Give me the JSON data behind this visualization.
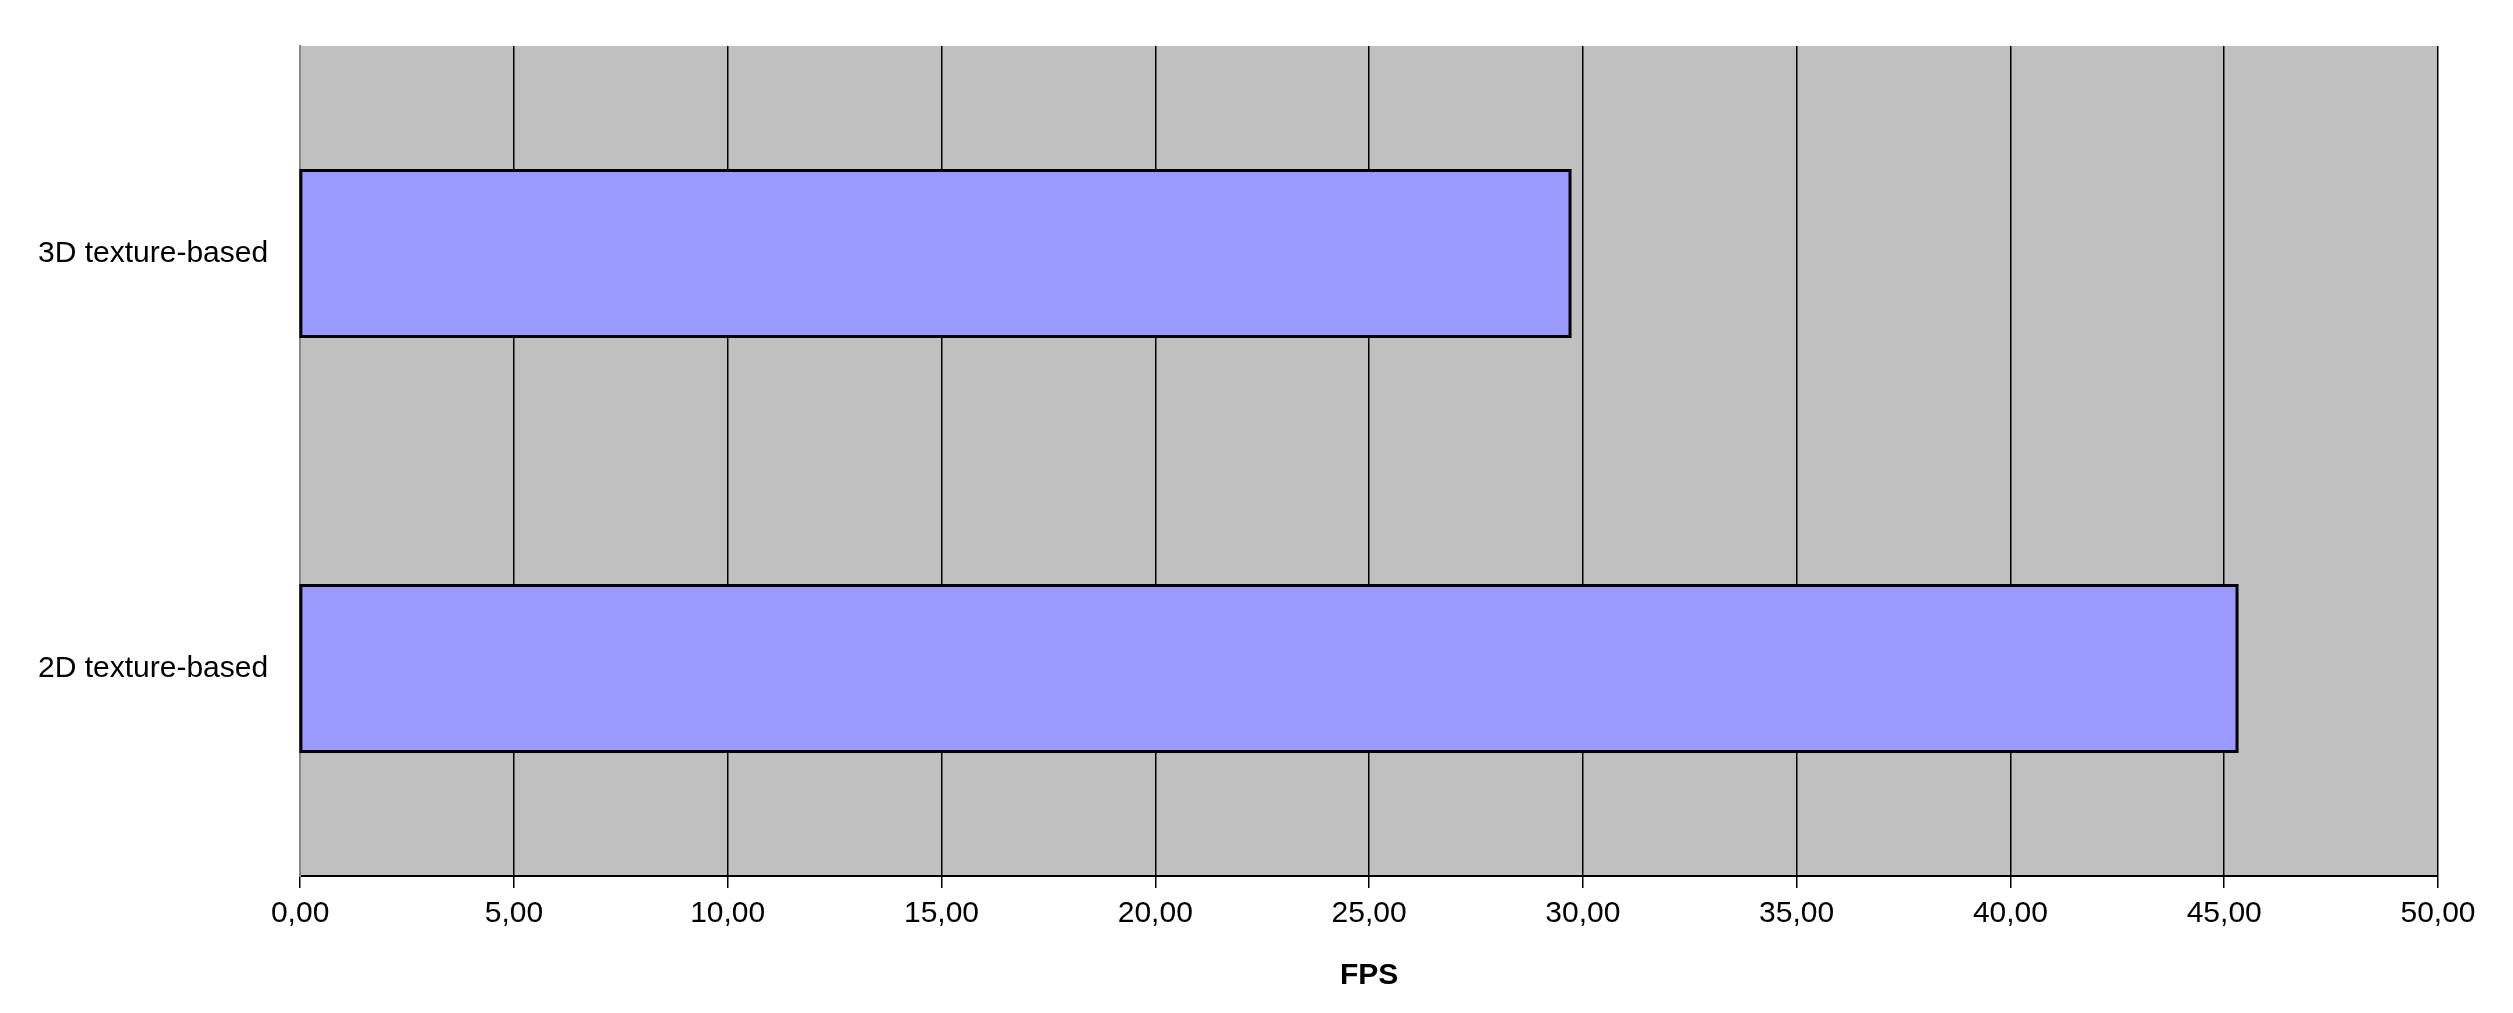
{
  "chart_data": {
    "type": "bar",
    "orientation": "horizontal",
    "xlabel": "FPS",
    "categories": [
      "3D texture-based",
      "2D texture-based"
    ],
    "values": [
      29.7,
      45.3
    ],
    "color": "#9999ff",
    "xlim": [
      0,
      50
    ],
    "xticks": [
      {
        "value": 0,
        "label": "0,00"
      },
      {
        "value": 5,
        "label": "5,00"
      },
      {
        "value": 10,
        "label": "10,00"
      },
      {
        "value": 15,
        "label": "15,00"
      },
      {
        "value": 20,
        "label": "20,00"
      },
      {
        "value": 25,
        "label": "25,00"
      },
      {
        "value": 30,
        "label": "30,00"
      },
      {
        "value": 35,
        "label": "35,00"
      },
      {
        "value": 40,
        "label": "40,00"
      },
      {
        "value": 45,
        "label": "45,00"
      },
      {
        "value": 50,
        "label": "50,00"
      }
    ],
    "grid": "x"
  }
}
